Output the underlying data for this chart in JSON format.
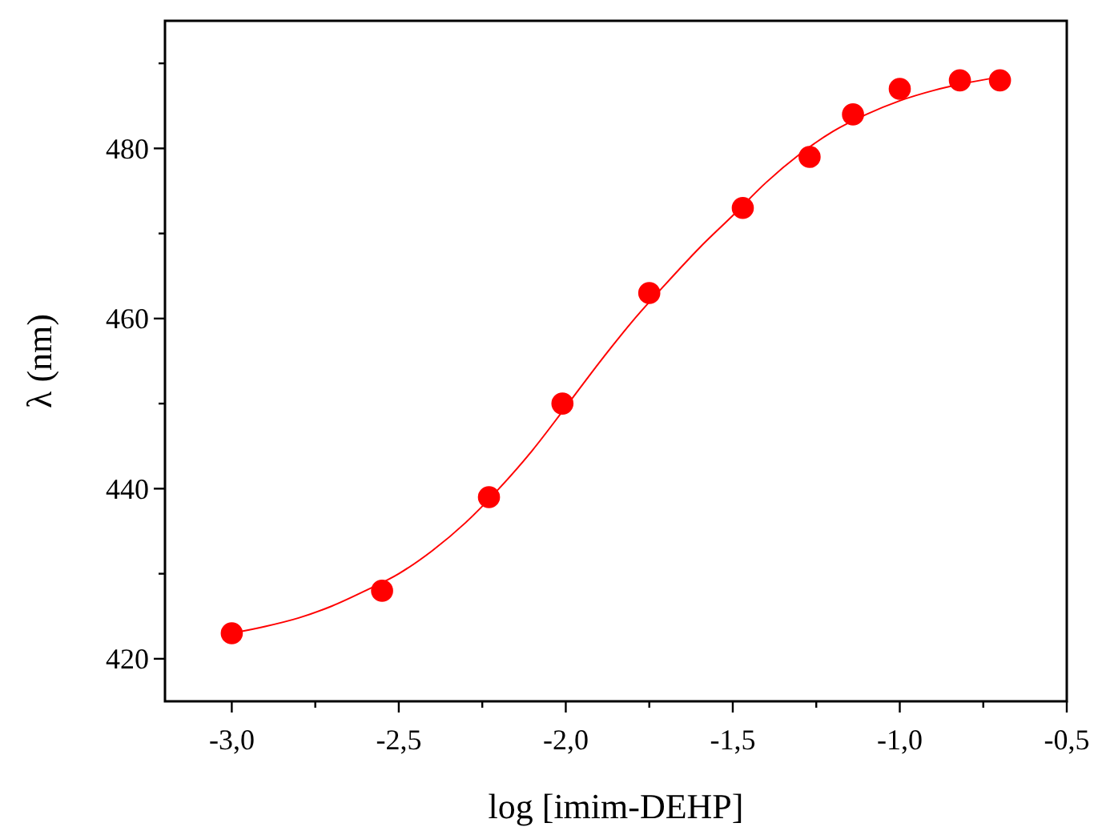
{
  "chart_data": {
    "type": "scatter",
    "xlabel": "log [imim-DEHP]",
    "ylabel": "λ (nm)",
    "xlim": [
      -3.2,
      -0.5
    ],
    "xticks": [
      {
        "value": -3,
        "label": "-3,0"
      },
      {
        "value": -2.75,
        "label": null
      },
      {
        "value": -2.5,
        "label": "-2,5"
      },
      {
        "value": -2.25,
        "label": null
      },
      {
        "value": -2,
        "label": "-2,0"
      },
      {
        "value": -1.75,
        "label": null
      },
      {
        "value": -1.5,
        "label": "-1,5"
      },
      {
        "value": -1.25,
        "label": null
      },
      {
        "value": -1,
        "label": "-1,0"
      },
      {
        "value": -0.75,
        "label": null
      },
      {
        "value": -0.5,
        "label": "-0,5"
      }
    ],
    "ylim": [
      415,
      495
    ],
    "yticks": [
      420,
      {
        "value": 430,
        "label": null
      },
      440,
      {
        "value": 450,
        "label": null
      },
      460,
      {
        "value": 470,
        "label": null
      },
      480,
      {
        "value": 490,
        "label": null
      }
    ],
    "grid": false,
    "marker": "circle",
    "series": [
      {
        "color": "#ff0000",
        "x": [
          -3.0,
          -2.55,
          -2.23,
          -2.01,
          -1.75,
          -1.47,
          -1.27,
          -1.14,
          -1.0,
          -0.82,
          -0.7
        ],
        "values": [
          423,
          428,
          439,
          450,
          463,
          473,
          479,
          484,
          487,
          488,
          488
        ]
      },
      {
        "type": "line",
        "color": "#ff0000",
        "marker": "none",
        "line_style": "solid",
        "x": [
          -3.0,
          -2.9,
          -2.8,
          -2.7,
          -2.6,
          -2.5,
          -2.4,
          -2.3,
          -2.2,
          -2.1,
          -2.0,
          -1.9,
          -1.8,
          -1.7,
          -1.6,
          -1.5,
          -1.4,
          -1.3,
          -1.2,
          -1.1,
          -1.0,
          -0.9,
          -0.8,
          -0.7
        ],
        "values": [
          423.0,
          423.8,
          424.8,
          426.2,
          428.0,
          430.0,
          432.7,
          436.0,
          440.0,
          444.5,
          449.6,
          454.8,
          459.7,
          464.1,
          468.3,
          472.1,
          476.0,
          479.3,
          482.0,
          484.0,
          485.6,
          486.8,
          487.7,
          488.4
        ]
      }
    ]
  }
}
